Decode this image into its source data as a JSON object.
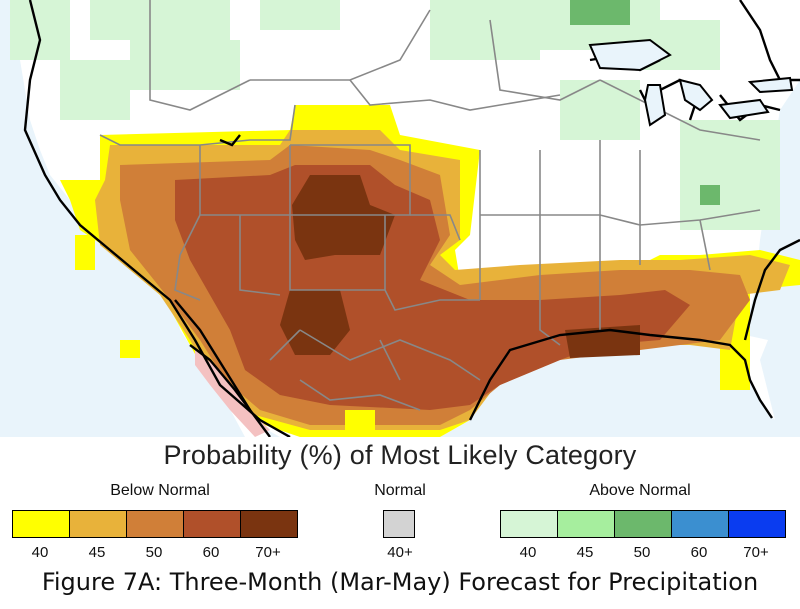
{
  "legend": {
    "title": "Probability (%) of Most Likely Category",
    "below": {
      "label": "Below Normal",
      "colors": [
        "#ffff00",
        "#e8b23a",
        "#d07f38",
        "#b0502a",
        "#7a3410"
      ],
      "ticks": [
        "40",
        "45",
        "50",
        "60",
        "70+"
      ]
    },
    "normal": {
      "label": "Normal",
      "color": "#d3d3d3",
      "tick": "40+"
    },
    "above": {
      "label": "Above Normal",
      "colors": [
        "#d6f5d6",
        "#a6ee9e",
        "#6cb86c",
        "#3b8fd0",
        "#0a3cf0"
      ],
      "ticks": [
        "40",
        "45",
        "50",
        "60",
        "70+"
      ]
    }
  },
  "caption": "Figure 7A: Three-Month (Mar-May) Forecast for Precipitation",
  "map": {
    "ocean_color": "#e8f4fb",
    "land_color": "#ffffff",
    "state_border_color": "#888888",
    "coast_color": "#000000"
  }
}
